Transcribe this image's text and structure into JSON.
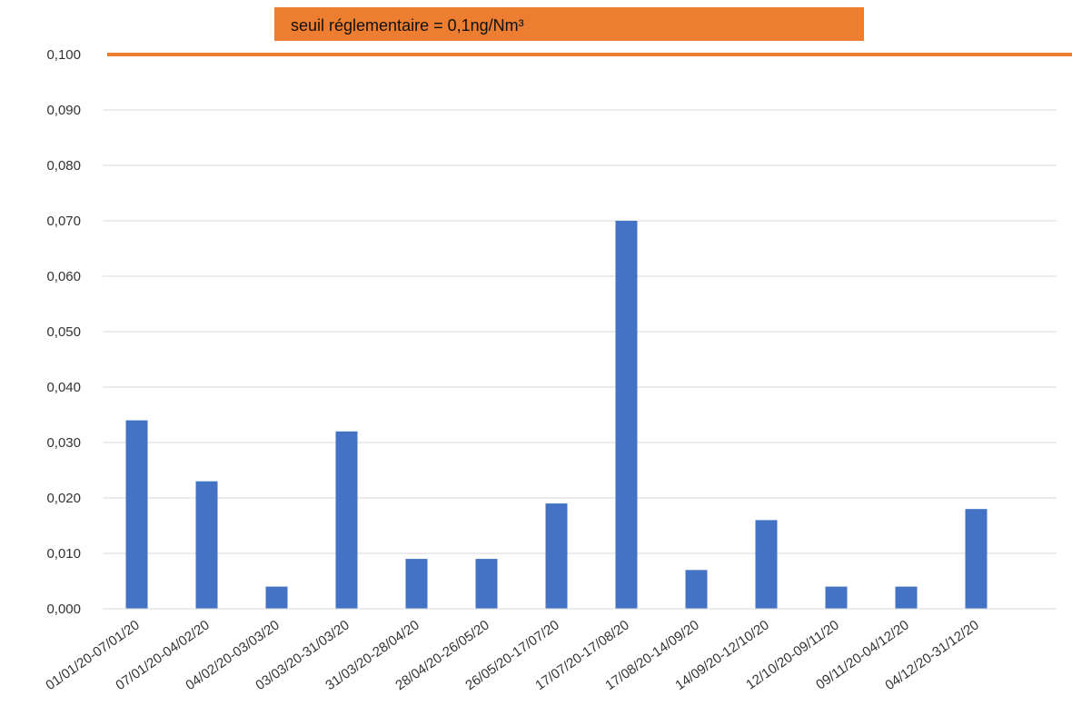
{
  "chart_data": {
    "type": "bar",
    "categories": [
      "01/01/20-07/01/20",
      "07/01/20-04/02/20",
      "04/02/20-03/03/20",
      "03/03/20-31/03/20",
      "31/03/20-28/04/20",
      "28/04/20-26/05/20",
      "26/05/20-17/07/20",
      "17/07/20-17/08/20",
      "17/08/20-14/09/20",
      "14/09/20-12/10/20",
      "12/10/20-09/11/20",
      "09/11/20-04/12/20",
      "04/12/20-31/12/20"
    ],
    "values": [
      0.034,
      0.023,
      0.004,
      0.032,
      0.009,
      0.009,
      0.019,
      0.07,
      0.007,
      0.016,
      0.004,
      0.004,
      0.018
    ],
    "ylim": [
      0,
      0.1
    ],
    "y_ticks": [
      "0,000",
      "0,010",
      "0,020",
      "0,030",
      "0,040",
      "0,050",
      "0,060",
      "0,070",
      "0,080",
      "0,090",
      "0,100"
    ],
    "grid": true,
    "bar_color": "#4472C4",
    "threshold": {
      "value": 0.1,
      "label": "seuil réglementaire = 0,1ng/Nm³",
      "color": "#ED7D31"
    }
  }
}
